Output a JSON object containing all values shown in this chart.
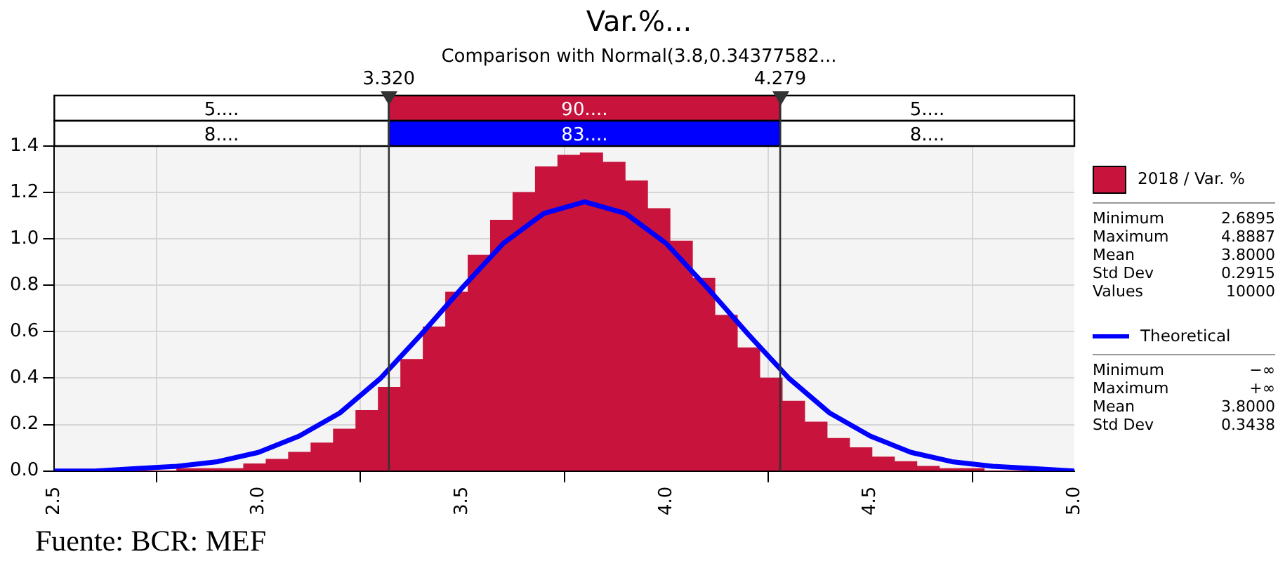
{
  "chart_data": {
    "type": "histogram",
    "title": "Var.%...",
    "subtitle": "Comparison with Normal(3.8,0.34377582...",
    "bins": [
      2.69,
      2.745,
      2.8,
      2.855,
      2.909,
      2.964,
      3.019,
      3.074,
      3.129,
      3.184,
      3.239,
      3.294,
      3.349,
      3.404,
      3.459,
      3.514,
      3.569,
      3.624,
      3.679,
      3.734,
      3.789,
      3.844,
      3.899,
      3.954,
      4.009,
      4.064,
      4.119,
      4.174,
      4.229,
      4.284,
      4.339,
      4.394,
      4.449,
      4.504,
      4.559,
      4.614,
      4.669,
      4.724,
      4.779,
      4.834,
      4.889
    ],
    "series": [
      {
        "name": "2018 / Var. %",
        "color": "#c8143c",
        "values": [
          0,
          0,
          0.01,
          0.01,
          0.01,
          0.03,
          0.05,
          0.08,
          0.12,
          0.18,
          0.26,
          0.36,
          0.48,
          0.62,
          0.77,
          0.93,
          1.08,
          1.2,
          1.31,
          1.36,
          1.37,
          1.33,
          1.25,
          1.13,
          0.99,
          0.83,
          0.67,
          0.53,
          0.4,
          0.3,
          0.21,
          0.14,
          0.1,
          0.06,
          0.04,
          0.02,
          0.01,
          0.01,
          0,
          0
        ]
      },
      {
        "name": "Theoretical",
        "type": "line",
        "color": "#0000ff",
        "x": [
          2.5,
          2.6,
          2.7,
          2.8,
          2.9,
          3.0,
          3.1,
          3.2,
          3.3,
          3.4,
          3.5,
          3.6,
          3.7,
          3.8,
          3.9,
          4.0,
          4.1,
          4.2,
          4.3,
          4.4,
          4.5,
          4.6,
          4.7,
          4.8,
          4.9,
          5.0
        ],
        "values": [
          0,
          0,
          0.01,
          0.02,
          0.04,
          0.08,
          0.15,
          0.25,
          0.4,
          0.59,
          0.79,
          0.98,
          1.11,
          1.16,
          1.11,
          0.98,
          0.79,
          0.59,
          0.4,
          0.25,
          0.15,
          0.08,
          0.04,
          0.02,
          0.01,
          0
        ]
      }
    ],
    "xlim": [
      2.5,
      5.0
    ],
    "xticks": [
      2.5,
      {
        "value": 3,
        "label": "3.0"
      },
      3.5,
      {
        "value": 4,
        "label": "4.0"
      },
      4.5,
      {
        "value": 5,
        "label": "5.0"
      }
    ],
    "ylim": [
      0,
      1.4
    ],
    "yticks": [
      {
        "value": 0,
        "label": "0.0"
      },
      0.2,
      0.4,
      0.6,
      0.8,
      {
        "value": 1,
        "label": "1.0"
      },
      1.2,
      1.4
    ],
    "ref_lines": [
      {
        "axis": "x",
        "value": 3.32,
        "label": "3.320"
      },
      {
        "axis": "x",
        "value": 4.279,
        "label": "4.279"
      }
    ],
    "annotations": [
      "5....",
      "90....",
      "5....",
      "8....",
      "83....",
      "8....",
      "Minimum",
      "2.6895",
      "Maximum",
      "4.8887",
      "Mean",
      "3.8000",
      "Std Dev",
      "0.2915",
      "Values",
      "10000",
      "Minimum",
      "−∞",
      "Maximum",
      "+∞",
      "Mean",
      "3.8000",
      "Std Dev",
      "0.3438",
      "Fuente: BCR: MEF"
    ],
    "grid": true,
    "legend": "right"
  }
}
